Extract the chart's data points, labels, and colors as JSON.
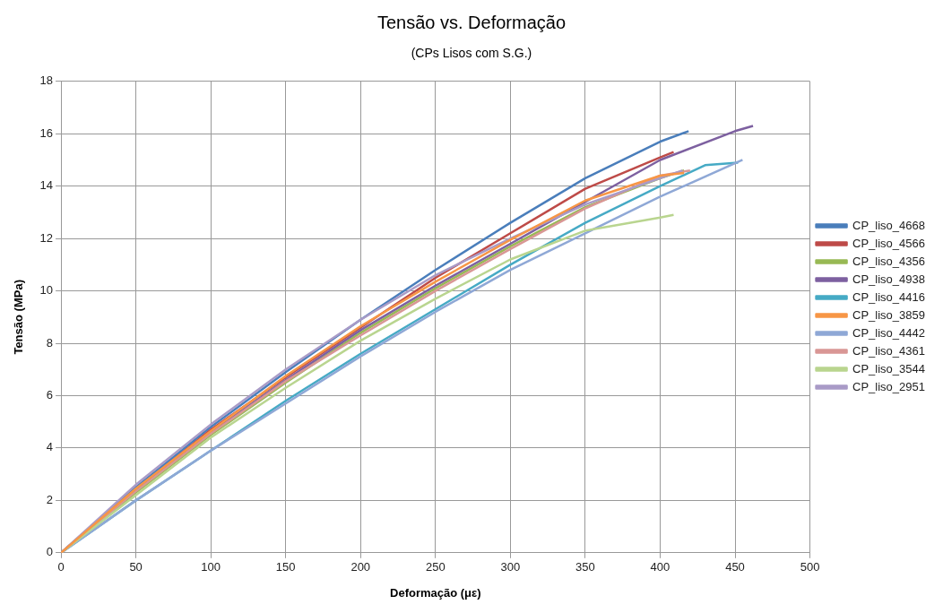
{
  "chart_data": {
    "type": "line",
    "title": "Tensão vs. Deformação",
    "subtitle": "(CPs Lisos com S.G.)",
    "xlabel": "Deformação (με)",
    "ylabel": "Tensão (MPa)",
    "xlim": [
      0,
      500
    ],
    "xticks": [
      0,
      50,
      100,
      150,
      200,
      250,
      300,
      350,
      400,
      450,
      500
    ],
    "ylim": [
      0,
      18
    ],
    "yticks": [
      0,
      2,
      4,
      6,
      8,
      10,
      12,
      14,
      16,
      18
    ],
    "grid": true,
    "legend": "right",
    "marker": "none",
    "line_style": "solid",
    "series": [
      {
        "name": "CP_liso_4668",
        "color": "#4a7ebb",
        "x": [
          0,
          50,
          100,
          150,
          200,
          250,
          300,
          350,
          400,
          419
        ],
        "values": [
          0,
          2.5,
          4.8,
          6.9,
          8.9,
          10.8,
          12.6,
          14.3,
          15.7,
          16.1
        ]
      },
      {
        "name": "CP_liso_4566",
        "color": "#be4b48",
        "x": [
          0,
          50,
          100,
          150,
          200,
          250,
          300,
          350,
          400,
          409
        ],
        "values": [
          0,
          2.4,
          4.7,
          6.7,
          8.6,
          10.5,
          12.2,
          13.9,
          15.1,
          15.3
        ]
      },
      {
        "name": "CP_liso_4356",
        "color": "#98b954",
        "x": [
          0,
          50,
          100,
          150,
          200,
          250,
          300,
          350,
          400,
          416
        ],
        "values": [
          0,
          2.3,
          4.5,
          6.5,
          8.4,
          10.1,
          11.7,
          13.2,
          14.3,
          14.6
        ]
      },
      {
        "name": "CP_liso_4938",
        "color": "#7d60a0",
        "x": [
          0,
          50,
          100,
          150,
          200,
          250,
          300,
          350,
          400,
          450,
          462
        ],
        "values": [
          0,
          2.4,
          4.6,
          6.6,
          8.5,
          10.2,
          11.8,
          13.4,
          15.0,
          16.1,
          16.3
        ]
      },
      {
        "name": "CP_liso_4416",
        "color": "#46aac5",
        "x": [
          0,
          50,
          100,
          150,
          200,
          250,
          300,
          350,
          400,
          430,
          452
        ],
        "values": [
          0,
          2.0,
          3.9,
          5.8,
          7.6,
          9.3,
          11.0,
          12.6,
          14.0,
          14.8,
          14.9
        ]
      },
      {
        "name": "CP_liso_3859",
        "color": "#f79646",
        "x": [
          0,
          50,
          100,
          150,
          200,
          250,
          300,
          350,
          400,
          416
        ],
        "values": [
          0,
          2.45,
          4.65,
          6.75,
          8.65,
          10.35,
          11.95,
          13.45,
          14.4,
          14.5
        ]
      },
      {
        "name": "CP_liso_4442",
        "color": "#8fa8d6",
        "x": [
          0,
          50,
          100,
          150,
          200,
          250,
          300,
          350,
          400,
          455
        ],
        "values": [
          0,
          2.0,
          3.9,
          5.7,
          7.5,
          9.2,
          10.8,
          12.2,
          13.6,
          15.0
        ]
      },
      {
        "name": "CP_liso_4361",
        "color": "#d99795",
        "x": [
          0,
          50,
          100,
          150,
          200,
          250,
          300,
          350,
          400,
          420
        ],
        "values": [
          0,
          2.35,
          4.55,
          6.55,
          8.3,
          10.0,
          11.6,
          13.15,
          14.4,
          14.6
        ]
      },
      {
        "name": "CP_liso_3544",
        "color": "#b9d58f",
        "x": [
          0,
          50,
          100,
          150,
          200,
          250,
          300,
          350,
          400,
          409
        ],
        "values": [
          0,
          2.2,
          4.4,
          6.3,
          8.1,
          9.7,
          11.2,
          12.3,
          12.8,
          12.9
        ]
      },
      {
        "name": "CP_liso_2951",
        "color": "#a99bc7",
        "x": [
          0,
          50,
          100,
          150,
          200,
          250,
          300,
          350,
          400,
          415
        ],
        "values": [
          0,
          2.6,
          4.9,
          7.0,
          8.9,
          10.6,
          12.0,
          13.3,
          14.3,
          14.6
        ]
      }
    ]
  }
}
